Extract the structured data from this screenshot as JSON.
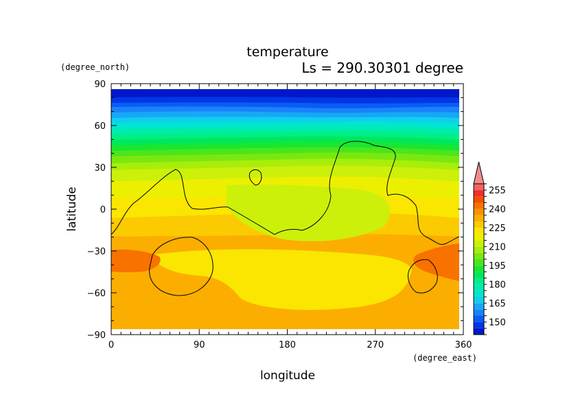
{
  "chart_data": {
    "type": "heatmap",
    "title": "temperature",
    "subtitle": "Ls = 290.30301 degree",
    "xlabel": "longitude",
    "ylabel": "latitude",
    "x_unit": "(degree_east)",
    "y_unit": "(degree_north)",
    "xlim": [
      0,
      360
    ],
    "ylim": [
      -90,
      90
    ],
    "x_ticks": [
      "0",
      "90",
      "180",
      "270",
      "360"
    ],
    "y_ticks": [
      "90",
      "60",
      "30",
      "0",
      "−30",
      "−60",
      "−90"
    ],
    "colorbar": {
      "levels": [
        140,
        145,
        150,
        155,
        160,
        165,
        170,
        175,
        180,
        185,
        190,
        195,
        200,
        205,
        210,
        215,
        220,
        225,
        230,
        235,
        240,
        245,
        250,
        255,
        260
      ],
      "tick_labels": [
        "150",
        "165",
        "180",
        "195",
        "210",
        "225",
        "240",
        "255"
      ],
      "colors": [
        "#0018c8",
        "#0037e6",
        "#0a5cf5",
        "#1a82fa",
        "#16a8f6",
        "#10cfee",
        "#00e6d0",
        "#00ecac",
        "#00ee88",
        "#00e85a",
        "#19e632",
        "#4ae61c",
        "#7ae810",
        "#a8ee0a",
        "#ccf00a",
        "#ecf000",
        "#fae600",
        "#fcca00",
        "#fcae00",
        "#fa9200",
        "#f87200",
        "#f64e00",
        "#ee3028",
        "#f06464",
        "#f08c8c"
      ],
      "extend": "max"
    },
    "grid": false,
    "contour": "black outline overlay"
  }
}
